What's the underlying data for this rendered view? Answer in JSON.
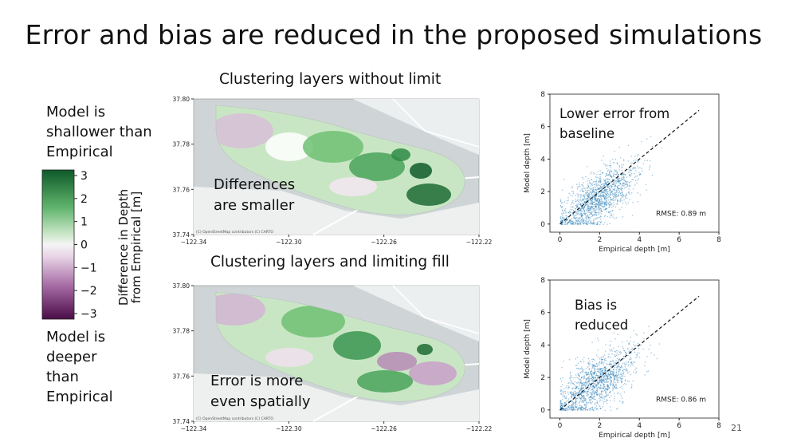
{
  "slide": {
    "title": "Error and bias are reduced in the proposed simulations",
    "page_number": "21"
  },
  "legend": {
    "top_label": "Model is shallower than Empirical",
    "bottom_label": "Model is deeper than Empirical",
    "colorbar_label_line1": "Difference in Depth",
    "colorbar_label_line2": "from Empirical [m]",
    "ticks": [
      "3",
      "2",
      "1",
      "0",
      "−1",
      "−2",
      "−3"
    ],
    "range": [
      -3,
      3
    ],
    "colors": {
      "positive": "#0f5a2a",
      "neutral": "#f4f4f4",
      "negative": "#4a0c46"
    }
  },
  "maps": [
    {
      "title": "Clustering layers without limit",
      "overlay_line1": "Differences",
      "overlay_line2": "are smaller",
      "attribution": "(C) OpenStreetMap contributors (C) CARTO",
      "y_ticks": [
        "37.80",
        "37.78",
        "37.76",
        "37.74"
      ],
      "x_ticks": [
        "−122.34",
        "−122.30",
        "−122.26",
        "−122.22"
      ]
    },
    {
      "title": "Clustering layers and limiting fill",
      "overlay_line1": "Error is more",
      "overlay_line2": "even spatially",
      "attribution": "(C) OpenStreetMap contributors (C) CARTO",
      "y_ticks": [
        "37.80",
        "37.78",
        "37.76",
        "37.74"
      ],
      "x_ticks": [
        "−122.34",
        "−122.30",
        "−122.26",
        "−122.22"
      ]
    }
  ],
  "chart_data": [
    {
      "type": "scatter",
      "title": "",
      "annotation_line1": "Lower error from",
      "annotation_line2": "baseline",
      "xlabel": "Empirical depth [m]",
      "ylabel": "Model depth [m]",
      "xlim": [
        -0.5,
        8
      ],
      "ylim": [
        -0.5,
        8
      ],
      "x_ticks": [
        "0",
        "2",
        "4",
        "6",
        "8"
      ],
      "y_ticks": [
        "0",
        "2",
        "4",
        "6",
        "8"
      ],
      "rmse_label": "RMSE: 0.89 m",
      "reference_line": {
        "x": [
          0,
          7
        ],
        "y": [
          0,
          7
        ],
        "style": "dashed"
      },
      "point_color": "#1f77b4",
      "cloud": {
        "center_x": 1.9,
        "center_y": 1.6,
        "spread_x": 1.0,
        "spread_y": 0.8,
        "n": 1400
      }
    },
    {
      "type": "scatter",
      "title": "",
      "annotation_line1": "Bias is",
      "annotation_line2": "reduced",
      "xlabel": "Empirical depth [m]",
      "ylabel": "Model depth [m]",
      "xlim": [
        -0.5,
        8
      ],
      "ylim": [
        -0.5,
        8
      ],
      "x_ticks": [
        "0",
        "2",
        "4",
        "6",
        "8"
      ],
      "y_ticks": [
        "0",
        "2",
        "4",
        "6",
        "8"
      ],
      "rmse_label": "RMSE: 0.86 m",
      "reference_line": {
        "x": [
          0,
          7
        ],
        "y": [
          0,
          7
        ],
        "style": "dashed"
      },
      "point_color": "#1f77b4",
      "cloud": {
        "center_x": 1.8,
        "center_y": 1.7,
        "spread_x": 1.0,
        "spread_y": 0.85,
        "n": 1400
      }
    }
  ]
}
